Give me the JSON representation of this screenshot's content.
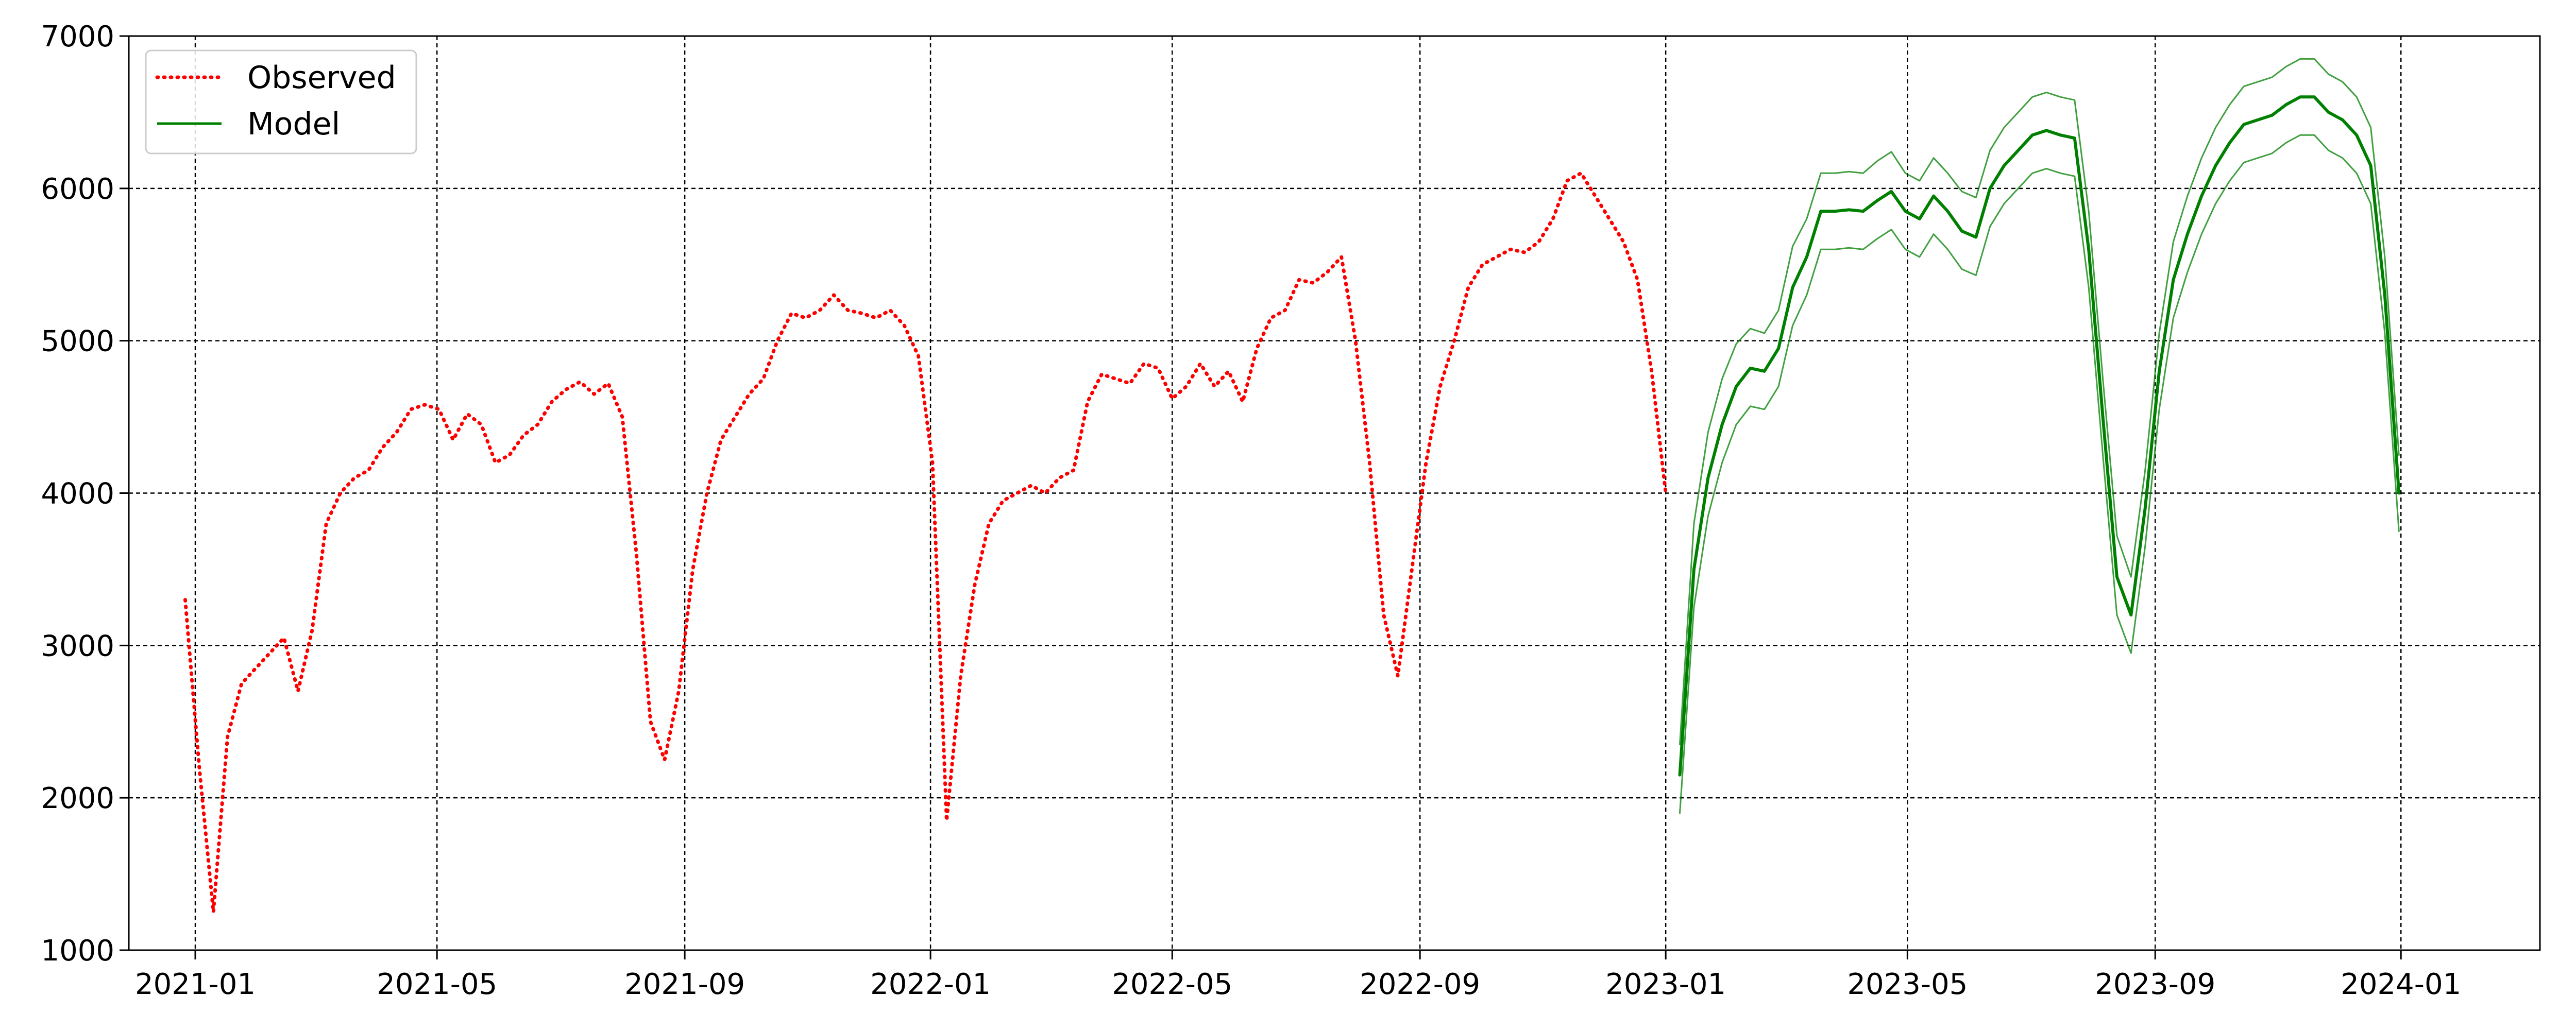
{
  "chart_data": {
    "type": "line",
    "title": "",
    "xlabel": "",
    "ylabel": "",
    "xlim": [
      "2020-11-29",
      "2024-03-10"
    ],
    "ylim": [
      1000,
      7000
    ],
    "grid": true,
    "grid_style": "dashed",
    "legend": {
      "position": "top-left",
      "entries": [
        "Observed",
        "Model"
      ]
    },
    "x_ticks": [
      "2021-01",
      "2021-05",
      "2021-09",
      "2022-01",
      "2022-05",
      "2022-09",
      "2023-01",
      "2023-05",
      "2023-09",
      "2024-01"
    ],
    "y_ticks": [
      1000,
      2000,
      3000,
      4000,
      5000,
      6000,
      7000
    ],
    "series": [
      {
        "name": "Observed",
        "color": "#ff0000",
        "line_style": "dotted",
        "points": [
          [
            "2020-12-27",
            3300
          ],
          [
            "2021-01-03",
            2200
          ],
          [
            "2021-01-10",
            1250
          ],
          [
            "2021-01-17",
            2400
          ],
          [
            "2021-01-24",
            2750
          ],
          [
            "2021-01-31",
            2850
          ],
          [
            "2021-02-07",
            2950
          ],
          [
            "2021-02-14",
            3050
          ],
          [
            "2021-02-21",
            2700
          ],
          [
            "2021-02-28",
            3100
          ],
          [
            "2021-03-07",
            3800
          ],
          [
            "2021-03-14",
            4000
          ],
          [
            "2021-03-21",
            4100
          ],
          [
            "2021-03-28",
            4150
          ],
          [
            "2021-04-04",
            4300
          ],
          [
            "2021-04-11",
            4400
          ],
          [
            "2021-04-18",
            4550
          ],
          [
            "2021-04-25",
            4580
          ],
          [
            "2021-05-02",
            4550
          ],
          [
            "2021-05-09",
            4350
          ],
          [
            "2021-05-16",
            4520
          ],
          [
            "2021-05-23",
            4450
          ],
          [
            "2021-05-30",
            4200
          ],
          [
            "2021-06-06",
            4250
          ],
          [
            "2021-06-13",
            4380
          ],
          [
            "2021-06-20",
            4450
          ],
          [
            "2021-06-27",
            4600
          ],
          [
            "2021-07-04",
            4680
          ],
          [
            "2021-07-11",
            4730
          ],
          [
            "2021-07-18",
            4650
          ],
          [
            "2021-07-25",
            4720
          ],
          [
            "2021-08-01",
            4500
          ],
          [
            "2021-08-08",
            3600
          ],
          [
            "2021-08-15",
            2500
          ],
          [
            "2021-08-22",
            2250
          ],
          [
            "2021-08-29",
            2700
          ],
          [
            "2021-09-05",
            3500
          ],
          [
            "2021-09-12",
            4000
          ],
          [
            "2021-09-19",
            4350
          ],
          [
            "2021-09-26",
            4500
          ],
          [
            "2021-10-03",
            4650
          ],
          [
            "2021-10-10",
            4750
          ],
          [
            "2021-10-17",
            5000
          ],
          [
            "2021-10-24",
            5180
          ],
          [
            "2021-10-31",
            5150
          ],
          [
            "2021-11-07",
            5200
          ],
          [
            "2021-11-14",
            5300
          ],
          [
            "2021-11-21",
            5200
          ],
          [
            "2021-11-28",
            5180
          ],
          [
            "2021-12-05",
            5150
          ],
          [
            "2021-12-12",
            5200
          ],
          [
            "2021-12-19",
            5100
          ],
          [
            "2021-12-26",
            4900
          ],
          [
            "2022-01-02",
            4200
          ],
          [
            "2022-01-09",
            1850
          ],
          [
            "2022-01-16",
            2800
          ],
          [
            "2022-01-23",
            3400
          ],
          [
            "2022-01-30",
            3800
          ],
          [
            "2022-02-06",
            3950
          ],
          [
            "2022-02-13",
            4000
          ],
          [
            "2022-02-20",
            4050
          ],
          [
            "2022-02-27",
            4000
          ],
          [
            "2022-03-06",
            4100
          ],
          [
            "2022-03-13",
            4150
          ],
          [
            "2022-03-20",
            4600
          ],
          [
            "2022-03-27",
            4780
          ],
          [
            "2022-04-03",
            4750
          ],
          [
            "2022-04-10",
            4720
          ],
          [
            "2022-04-17",
            4850
          ],
          [
            "2022-04-24",
            4820
          ],
          [
            "2022-05-01",
            4620
          ],
          [
            "2022-05-08",
            4700
          ],
          [
            "2022-05-15",
            4850
          ],
          [
            "2022-05-22",
            4700
          ],
          [
            "2022-05-29",
            4800
          ],
          [
            "2022-06-05",
            4600
          ],
          [
            "2022-06-12",
            4950
          ],
          [
            "2022-06-19",
            5150
          ],
          [
            "2022-06-26",
            5200
          ],
          [
            "2022-07-03",
            5400
          ],
          [
            "2022-07-10",
            5380
          ],
          [
            "2022-07-17",
            5450
          ],
          [
            "2022-07-24",
            5550
          ],
          [
            "2022-07-31",
            5000
          ],
          [
            "2022-08-07",
            4200
          ],
          [
            "2022-08-14",
            3200
          ],
          [
            "2022-08-21",
            2800
          ],
          [
            "2022-08-28",
            3500
          ],
          [
            "2022-09-04",
            4200
          ],
          [
            "2022-09-11",
            4700
          ],
          [
            "2022-09-18",
            5000
          ],
          [
            "2022-09-25",
            5350
          ],
          [
            "2022-10-02",
            5500
          ],
          [
            "2022-10-09",
            5550
          ],
          [
            "2022-10-16",
            5600
          ],
          [
            "2022-10-23",
            5580
          ],
          [
            "2022-10-30",
            5650
          ],
          [
            "2022-11-06",
            5800
          ],
          [
            "2022-11-13",
            6050
          ],
          [
            "2022-11-20",
            6100
          ],
          [
            "2022-11-27",
            5950
          ],
          [
            "2022-12-04",
            5800
          ],
          [
            "2022-12-11",
            5650
          ],
          [
            "2022-12-18",
            5400
          ],
          [
            "2022-12-25",
            4800
          ],
          [
            "2023-01-01",
            4000
          ]
        ]
      },
      {
        "name": "Model",
        "color": "#008000",
        "line_style": "solid",
        "points": [
          [
            "2023-01-08",
            2150
          ],
          [
            "2023-01-15",
            3500
          ],
          [
            "2023-01-22",
            4100
          ],
          [
            "2023-01-29",
            4450
          ],
          [
            "2023-02-05",
            4700
          ],
          [
            "2023-02-12",
            4820
          ],
          [
            "2023-02-19",
            4800
          ],
          [
            "2023-02-26",
            4950
          ],
          [
            "2023-03-05",
            5350
          ],
          [
            "2023-03-12",
            5550
          ],
          [
            "2023-03-19",
            5850
          ],
          [
            "2023-03-26",
            5850
          ],
          [
            "2023-04-02",
            5860
          ],
          [
            "2023-04-09",
            5850
          ],
          [
            "2023-04-16",
            5920
          ],
          [
            "2023-04-23",
            5980
          ],
          [
            "2023-04-30",
            5850
          ],
          [
            "2023-05-07",
            5800
          ],
          [
            "2023-05-14",
            5950
          ],
          [
            "2023-05-21",
            5850
          ],
          [
            "2023-05-28",
            5720
          ],
          [
            "2023-06-04",
            5680
          ],
          [
            "2023-06-11",
            6000
          ],
          [
            "2023-06-18",
            6150
          ],
          [
            "2023-06-25",
            6250
          ],
          [
            "2023-07-02",
            6350
          ],
          [
            "2023-07-09",
            6380
          ],
          [
            "2023-07-16",
            6350
          ],
          [
            "2023-07-23",
            6330
          ],
          [
            "2023-07-30",
            5600
          ],
          [
            "2023-08-06",
            4500
          ],
          [
            "2023-08-13",
            3450
          ],
          [
            "2023-08-20",
            3200
          ],
          [
            "2023-08-27",
            3900
          ],
          [
            "2023-09-03",
            4800
          ],
          [
            "2023-09-10",
            5400
          ],
          [
            "2023-09-17",
            5700
          ],
          [
            "2023-09-24",
            5950
          ],
          [
            "2023-10-01",
            6150
          ],
          [
            "2023-10-08",
            6300
          ],
          [
            "2023-10-15",
            6420
          ],
          [
            "2023-10-22",
            6450
          ],
          [
            "2023-10-29",
            6480
          ],
          [
            "2023-11-05",
            6550
          ],
          [
            "2023-11-12",
            6600
          ],
          [
            "2023-11-19",
            6600
          ],
          [
            "2023-11-26",
            6500
          ],
          [
            "2023-12-03",
            6450
          ],
          [
            "2023-12-10",
            6350
          ],
          [
            "2023-12-17",
            6150
          ],
          [
            "2023-12-24",
            5300
          ],
          [
            "2023-12-31",
            4000
          ]
        ]
      },
      {
        "name": "",
        "role": "Model upper band",
        "color": "#008000",
        "line_style": "solid",
        "points": [
          [
            "2023-01-08",
            2350
          ],
          [
            "2023-01-15",
            3800
          ],
          [
            "2023-01-22",
            4400
          ],
          [
            "2023-01-29",
            4750
          ],
          [
            "2023-02-05",
            4980
          ],
          [
            "2023-02-12",
            5080
          ],
          [
            "2023-02-19",
            5050
          ],
          [
            "2023-02-26",
            5200
          ],
          [
            "2023-03-05",
            5620
          ],
          [
            "2023-03-12",
            5800
          ],
          [
            "2023-03-19",
            6100
          ],
          [
            "2023-03-26",
            6100
          ],
          [
            "2023-04-02",
            6110
          ],
          [
            "2023-04-09",
            6100
          ],
          [
            "2023-04-16",
            6180
          ],
          [
            "2023-04-23",
            6240
          ],
          [
            "2023-04-30",
            6100
          ],
          [
            "2023-05-07",
            6050
          ],
          [
            "2023-05-14",
            6200
          ],
          [
            "2023-05-21",
            6100
          ],
          [
            "2023-05-28",
            5980
          ],
          [
            "2023-06-04",
            5940
          ],
          [
            "2023-06-11",
            6250
          ],
          [
            "2023-06-18",
            6400
          ],
          [
            "2023-06-25",
            6500
          ],
          [
            "2023-07-02",
            6600
          ],
          [
            "2023-07-09",
            6630
          ],
          [
            "2023-07-16",
            6600
          ],
          [
            "2023-07-23",
            6580
          ],
          [
            "2023-07-30",
            5850
          ],
          [
            "2023-08-06",
            4750
          ],
          [
            "2023-08-13",
            3720
          ],
          [
            "2023-08-20",
            3450
          ],
          [
            "2023-08-27",
            4150
          ],
          [
            "2023-09-03",
            5050
          ],
          [
            "2023-09-10",
            5650
          ],
          [
            "2023-09-17",
            5950
          ],
          [
            "2023-09-24",
            6200
          ],
          [
            "2023-10-01",
            6400
          ],
          [
            "2023-10-08",
            6550
          ],
          [
            "2023-10-15",
            6670
          ],
          [
            "2023-10-22",
            6700
          ],
          [
            "2023-10-29",
            6730
          ],
          [
            "2023-11-05",
            6800
          ],
          [
            "2023-11-12",
            6850
          ],
          [
            "2023-11-19",
            6850
          ],
          [
            "2023-11-26",
            6750
          ],
          [
            "2023-12-03",
            6700
          ],
          [
            "2023-12-10",
            6600
          ],
          [
            "2023-12-17",
            6400
          ],
          [
            "2023-12-24",
            5550
          ],
          [
            "2023-12-31",
            4250
          ]
        ]
      },
      {
        "name": "",
        "role": "Model lower band",
        "color": "#008000",
        "line_style": "solid",
        "points": [
          [
            "2023-01-08",
            1900
          ],
          [
            "2023-01-15",
            3250
          ],
          [
            "2023-01-22",
            3850
          ],
          [
            "2023-01-29",
            4200
          ],
          [
            "2023-02-05",
            4450
          ],
          [
            "2023-02-12",
            4570
          ],
          [
            "2023-02-19",
            4550
          ],
          [
            "2023-02-26",
            4700
          ],
          [
            "2023-03-05",
            5100
          ],
          [
            "2023-03-12",
            5300
          ],
          [
            "2023-03-19",
            5600
          ],
          [
            "2023-03-26",
            5600
          ],
          [
            "2023-04-02",
            5610
          ],
          [
            "2023-04-09",
            5600
          ],
          [
            "2023-04-16",
            5670
          ],
          [
            "2023-04-23",
            5730
          ],
          [
            "2023-04-30",
            5600
          ],
          [
            "2023-05-07",
            5550
          ],
          [
            "2023-05-14",
            5700
          ],
          [
            "2023-05-21",
            5600
          ],
          [
            "2023-05-28",
            5470
          ],
          [
            "2023-06-04",
            5430
          ],
          [
            "2023-06-11",
            5750
          ],
          [
            "2023-06-18",
            5900
          ],
          [
            "2023-06-25",
            6000
          ],
          [
            "2023-07-02",
            6100
          ],
          [
            "2023-07-09",
            6130
          ],
          [
            "2023-07-16",
            6100
          ],
          [
            "2023-07-23",
            6080
          ],
          [
            "2023-07-30",
            5350
          ],
          [
            "2023-08-06",
            4250
          ],
          [
            "2023-08-13",
            3200
          ],
          [
            "2023-08-20",
            2950
          ],
          [
            "2023-08-27",
            3650
          ],
          [
            "2023-09-03",
            4550
          ],
          [
            "2023-09-10",
            5150
          ],
          [
            "2023-09-17",
            5450
          ],
          [
            "2023-09-24",
            5700
          ],
          [
            "2023-10-01",
            5900
          ],
          [
            "2023-10-08",
            6050
          ],
          [
            "2023-10-15",
            6170
          ],
          [
            "2023-10-22",
            6200
          ],
          [
            "2023-10-29",
            6230
          ],
          [
            "2023-11-05",
            6300
          ],
          [
            "2023-11-12",
            6350
          ],
          [
            "2023-11-19",
            6350
          ],
          [
            "2023-11-26",
            6250
          ],
          [
            "2023-12-03",
            6200
          ],
          [
            "2023-12-10",
            6100
          ],
          [
            "2023-12-17",
            5900
          ],
          [
            "2023-12-24",
            5050
          ],
          [
            "2023-12-31",
            3750
          ]
        ]
      }
    ]
  }
}
